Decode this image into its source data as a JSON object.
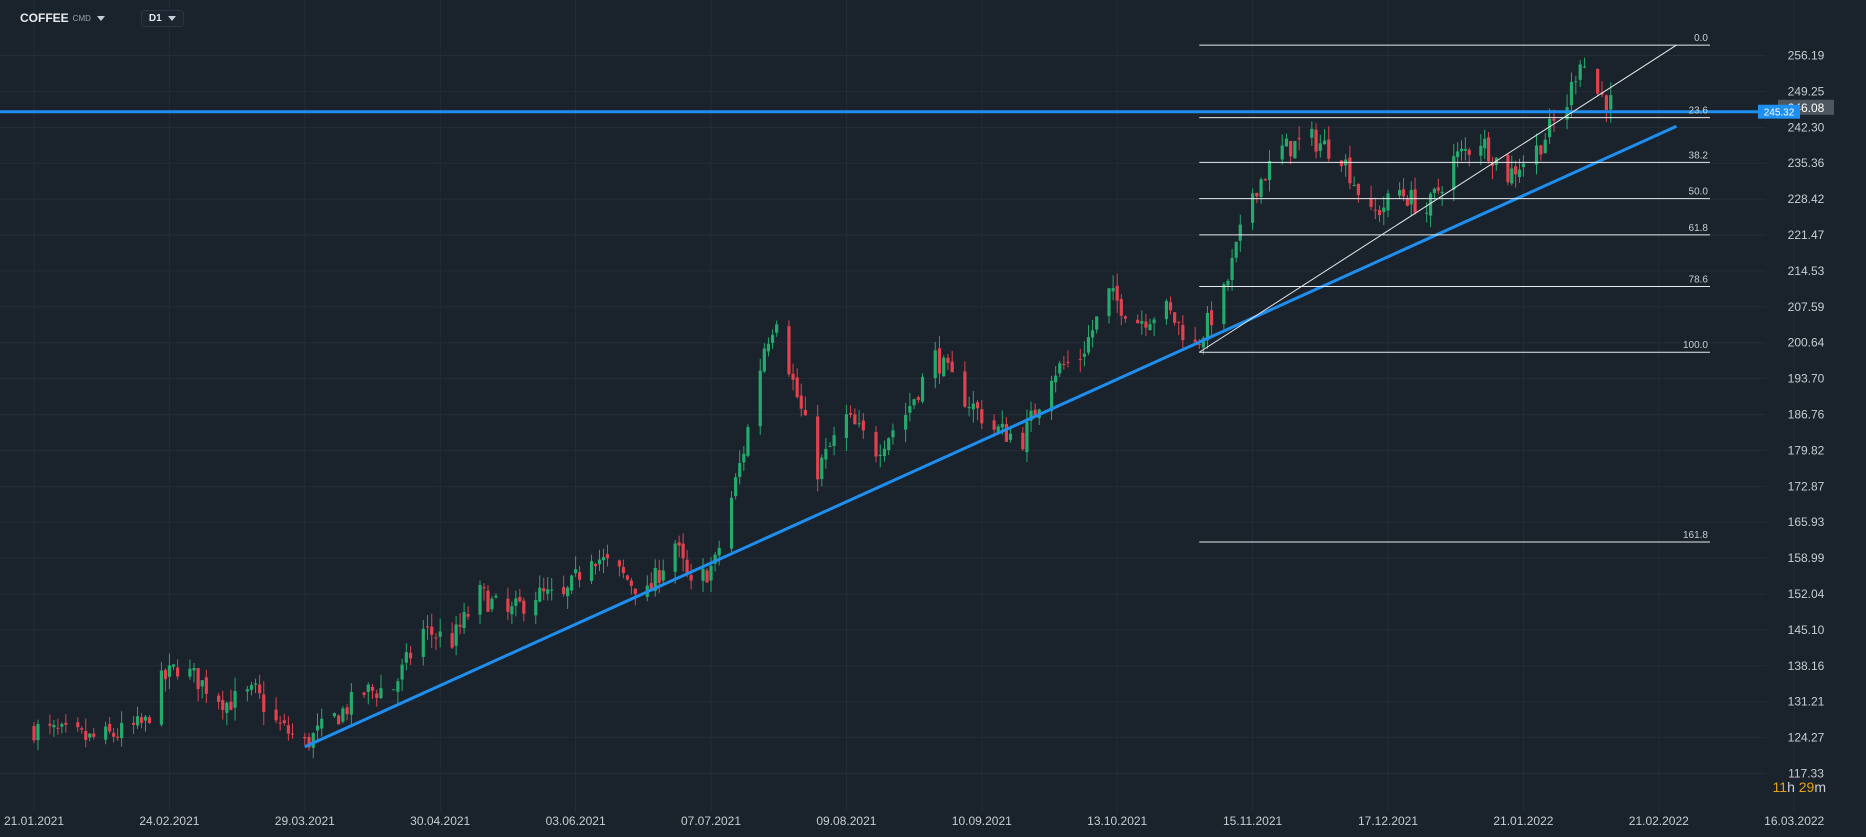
{
  "toolbar": {
    "symbol": "COFFEE",
    "exchange": "CMD",
    "timeframe": "D1"
  },
  "countdown": {
    "hours": "11",
    "h_unit": "h",
    "minutes": "29",
    "m_unit": "m"
  },
  "colors": {
    "background": "#1a222b",
    "grid": "#232d38",
    "up": "#26a96c",
    "down": "#e0424f",
    "trendline": "#1e8ff0",
    "fib": "#e8eaed",
    "text": "#c8cdd3"
  },
  "chart_data": {
    "type": "candlestick",
    "instrument": "COFFEE",
    "timeframe": "D1",
    "x_tick_labels": [
      "21.01.2021",
      "24.02.2021",
      "29.03.2021",
      "30.04.2021",
      "03.06.2021",
      "07.07.2021",
      "09.08.2021",
      "10.09.2021",
      "13.10.2021",
      "15.11.2021",
      "17.12.2021",
      "21.01.2022",
      "21.02.2022",
      "16.03.2022"
    ],
    "y_tick_labels": [
      "256.19",
      "249.25",
      "242.30",
      "235.36",
      "228.42",
      "221.47",
      "214.53",
      "207.59",
      "200.64",
      "193.70",
      "186.76",
      "179.82",
      "172.87",
      "165.93",
      "158.99",
      "152.04",
      "145.10",
      "138.16",
      "131.21",
      "124.27",
      "117.33"
    ],
    "ylim": [
      117.33,
      256.19
    ],
    "close_path": [
      {
        "date": "2021-01-21",
        "close": 126
      },
      {
        "date": "2021-01-28",
        "close": 125
      },
      {
        "date": "2021-02-04",
        "close": 124
      },
      {
        "date": "2021-02-11",
        "close": 125
      },
      {
        "date": "2021-02-18",
        "close": 127
      },
      {
        "date": "2021-02-22",
        "close": 135
      },
      {
        "date": "2021-02-26",
        "close": 138
      },
      {
        "date": "2021-03-02",
        "close": 136
      },
      {
        "date": "2021-03-10",
        "close": 131
      },
      {
        "date": "2021-03-17",
        "close": 133
      },
      {
        "date": "2021-03-22",
        "close": 127
      },
      {
        "date": "2021-03-29",
        "close": 123
      },
      {
        "date": "2021-04-05",
        "close": 128
      },
      {
        "date": "2021-04-12",
        "close": 133
      },
      {
        "date": "2021-04-19",
        "close": 134
      },
      {
        "date": "2021-04-26",
        "close": 145
      },
      {
        "date": "2021-05-03",
        "close": 143
      },
      {
        "date": "2021-05-10",
        "close": 152
      },
      {
        "date": "2021-05-17",
        "close": 148
      },
      {
        "date": "2021-05-24",
        "close": 152
      },
      {
        "date": "2021-05-31",
        "close": 151
      },
      {
        "date": "2021-06-07",
        "close": 160
      },
      {
        "date": "2021-06-14",
        "close": 156
      },
      {
        "date": "2021-06-21",
        "close": 152
      },
      {
        "date": "2021-06-28",
        "close": 162
      },
      {
        "date": "2021-07-02",
        "close": 153
      },
      {
        "date": "2021-07-08",
        "close": 158
      },
      {
        "date": "2021-07-15",
        "close": 180
      },
      {
        "date": "2021-07-20",
        "close": 200
      },
      {
        "date": "2021-07-23",
        "close": 206
      },
      {
        "date": "2021-07-27",
        "close": 193
      },
      {
        "date": "2021-08-02",
        "close": 176
      },
      {
        "date": "2021-08-09",
        "close": 186
      },
      {
        "date": "2021-08-16",
        "close": 180
      },
      {
        "date": "2021-08-23",
        "close": 187
      },
      {
        "date": "2021-08-30",
        "close": 198
      },
      {
        "date": "2021-09-06",
        "close": 190
      },
      {
        "date": "2021-09-13",
        "close": 184
      },
      {
        "date": "2021-09-20",
        "close": 182
      },
      {
        "date": "2021-09-27",
        "close": 195
      },
      {
        "date": "2021-10-04",
        "close": 198
      },
      {
        "date": "2021-10-11",
        "close": 210
      },
      {
        "date": "2021-10-18",
        "close": 205
      },
      {
        "date": "2021-10-25",
        "close": 207
      },
      {
        "date": "2021-11-01",
        "close": 200
      },
      {
        "date": "2021-11-08",
        "close": 210
      },
      {
        "date": "2021-11-15",
        "close": 230
      },
      {
        "date": "2021-11-22",
        "close": 238
      },
      {
        "date": "2021-11-29",
        "close": 240
      },
      {
        "date": "2021-12-06",
        "close": 237
      },
      {
        "date": "2021-12-13",
        "close": 225
      },
      {
        "date": "2021-12-20",
        "close": 230
      },
      {
        "date": "2021-12-27",
        "close": 226
      },
      {
        "date": "2022-01-03",
        "close": 236
      },
      {
        "date": "2022-01-10",
        "close": 240
      },
      {
        "date": "2022-01-17",
        "close": 233
      },
      {
        "date": "2022-01-24",
        "close": 238
      },
      {
        "date": "2022-01-31",
        "close": 247
      },
      {
        "date": "2022-02-03",
        "close": 256
      },
      {
        "date": "2022-02-07",
        "close": 249
      },
      {
        "date": "2022-02-10",
        "close": 247
      }
    ],
    "horizontal_line": {
      "price": 245.32,
      "label": "245.32"
    },
    "last_price": {
      "value": 246.08,
      "label": "246.08"
    },
    "trendline": {
      "from": {
        "date": "2021-03-29",
        "price": 122.5
      },
      "to": {
        "date": "2022-02-24",
        "price": 242.5
      }
    },
    "fibonacci": {
      "low": 198.8,
      "high": 258.2,
      "from_date": "2021-11-02",
      "to_date": "2022-02-24",
      "levels": [
        {
          "label": "0.0",
          "ratio": 0.0
        },
        {
          "label": "23.6",
          "ratio": 0.236
        },
        {
          "label": "38.2",
          "ratio": 0.382
        },
        {
          "label": "50.0",
          "ratio": 0.5
        },
        {
          "label": "61.8",
          "ratio": 0.618
        },
        {
          "label": "78.6",
          "ratio": 0.786
        },
        {
          "label": "100.0",
          "ratio": 1.0
        },
        {
          "label": "161.8",
          "ratio": 1.618
        }
      ],
      "diagonal": {
        "from": {
          "date": "2021-11-02",
          "price": 198.8
        },
        "to": {
          "date": "2022-02-24",
          "price": 258.2
        }
      }
    }
  }
}
